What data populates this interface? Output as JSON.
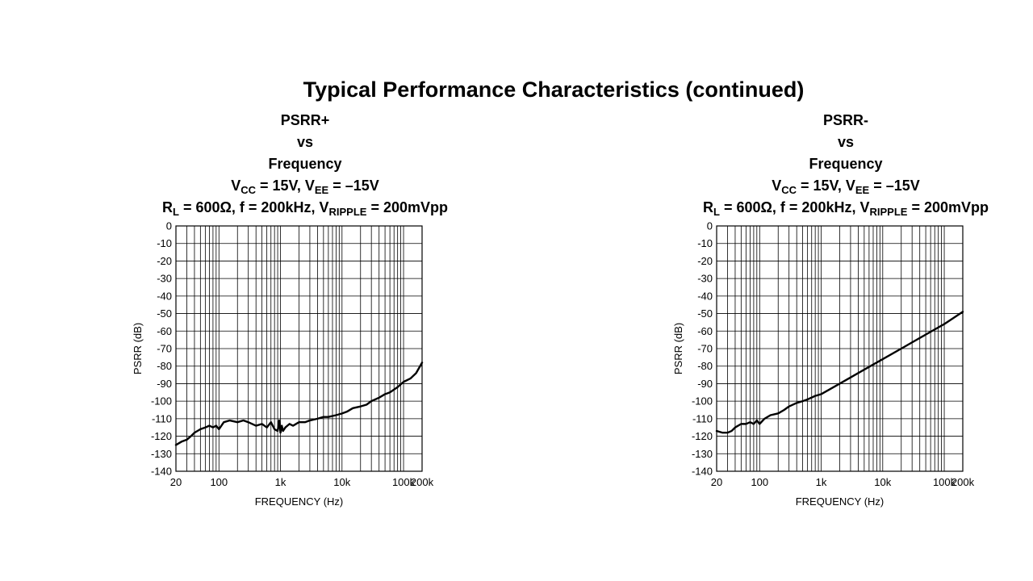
{
  "page": {
    "title": "Typical Performance Characteristics (continued)"
  },
  "charts": [
    {
      "title_lines": [
        "PSRR+",
        "vs",
        "Frequency"
      ],
      "cond1": {
        "v1": "V",
        "s1": "CC",
        "t1": " = 15V, V",
        "s2": "EE",
        "t2": " = –15V"
      },
      "cond2": {
        "t1": "R",
        "s1": "L",
        "t2": " = 600Ω, f = 200kHz, V",
        "s2": "RIPPLE",
        "t3": " = 200mVpp"
      }
    },
    {
      "title_lines": [
        "PSRR-",
        "vs",
        "Frequency"
      ],
      "cond1": {
        "v1": "V",
        "s1": "CC",
        "t1": " = 15V, V",
        "s2": "EE",
        "t2": " = –15V"
      },
      "cond2": {
        "t1": "R",
        "s1": "L",
        "t2": " = 600Ω, f = 200kHz, V",
        "s2": "RIPPLE",
        "t3": " = 200mVpp"
      }
    }
  ],
  "chart_data": [
    {
      "type": "line",
      "title": "PSRR+ vs Frequency",
      "xlabel": "FREQUENCY (Hz)",
      "ylabel": "PSRR (dB)",
      "x_scale": "log",
      "xlim": [
        20,
        200000
      ],
      "ylim": [
        -140,
        0
      ],
      "x_ticks": [
        20,
        100,
        1000,
        10000,
        100000,
        200000
      ],
      "x_tick_labels": [
        "20",
        "100",
        "1k",
        "10k",
        "100k",
        "200k"
      ],
      "y_ticks": [
        0,
        -10,
        -20,
        -30,
        -40,
        -50,
        -60,
        -70,
        -80,
        -90,
        -100,
        -110,
        -120,
        -130,
        -140
      ],
      "y_tick_labels": [
        "0",
        "-10",
        "-20",
        "-30",
        "-40",
        "-50",
        "-60",
        "-70",
        "-80",
        "-90",
        "-100",
        "-110",
        "-120",
        "-130",
        "-140"
      ],
      "grid": true,
      "series": [
        {
          "color": "#000000",
          "x": [
            20,
            25,
            30,
            35,
            40,
            50,
            60,
            70,
            80,
            90,
            100,
            120,
            150,
            200,
            250,
            300,
            400,
            500,
            600,
            700,
            800,
            900,
            950,
            1000,
            1050,
            1100,
            1200,
            1400,
            1600,
            2000,
            2500,
            3000,
            4000,
            5000,
            6000,
            8000,
            10000,
            12000,
            15000,
            20000,
            25000,
            30000,
            40000,
            50000,
            60000,
            80000,
            100000,
            130000,
            160000,
            200000
          ],
          "y": [
            -125,
            -123,
            -122,
            -120,
            -118,
            -116,
            -115,
            -114,
            -115,
            -114,
            -116,
            -112,
            -111,
            -112,
            -111,
            -112,
            -114,
            -113,
            -115,
            -112,
            -116,
            -117,
            -111,
            -118,
            -114,
            -117,
            -115,
            -113,
            -114,
            -112,
            -112,
            -111,
            -110,
            -109,
            -109,
            -108,
            -107,
            -106,
            -104,
            -103,
            -102,
            -100,
            -98,
            -96,
            -95,
            -92,
            -89,
            -87,
            -84,
            -78
          ]
        }
      ]
    },
    {
      "type": "line",
      "title": "PSRR- vs Frequency",
      "xlabel": "FREQUENCY (Hz)",
      "ylabel": "PSRR (dB)",
      "x_scale": "log",
      "xlim": [
        20,
        200000
      ],
      "ylim": [
        -140,
        0
      ],
      "x_ticks": [
        20,
        100,
        1000,
        10000,
        100000,
        200000
      ],
      "x_tick_labels": [
        "20",
        "100",
        "1k",
        "10k",
        "100k",
        "200k"
      ],
      "y_ticks": [
        0,
        -10,
        -20,
        -30,
        -40,
        -50,
        -60,
        -70,
        -80,
        -90,
        -100,
        -110,
        -120,
        -130,
        -140
      ],
      "y_tick_labels": [
        "0",
        "-10",
        "-20",
        "-30",
        "-40",
        "-50",
        "-60",
        "-70",
        "-80",
        "-90",
        "-100",
        "-110",
        "-120",
        "-130",
        "-140"
      ],
      "grid": true,
      "series": [
        {
          "color": "#000000",
          "x": [
            20,
            25,
            30,
            35,
            40,
            50,
            60,
            70,
            80,
            90,
            100,
            120,
            150,
            200,
            250,
            300,
            400,
            500,
            600,
            800,
            1000,
            2000,
            5000,
            10000,
            20000,
            50000,
            100000,
            200000
          ],
          "y": [
            -117,
            -118,
            -118,
            -117,
            -115,
            -113,
            -113,
            -112,
            -113,
            -111,
            -113,
            -110,
            -108,
            -107,
            -105,
            -103,
            -101,
            -100,
            -99,
            -97,
            -96,
            -90,
            -82,
            -76,
            -70,
            -62,
            -56,
            -49
          ]
        }
      ]
    }
  ]
}
